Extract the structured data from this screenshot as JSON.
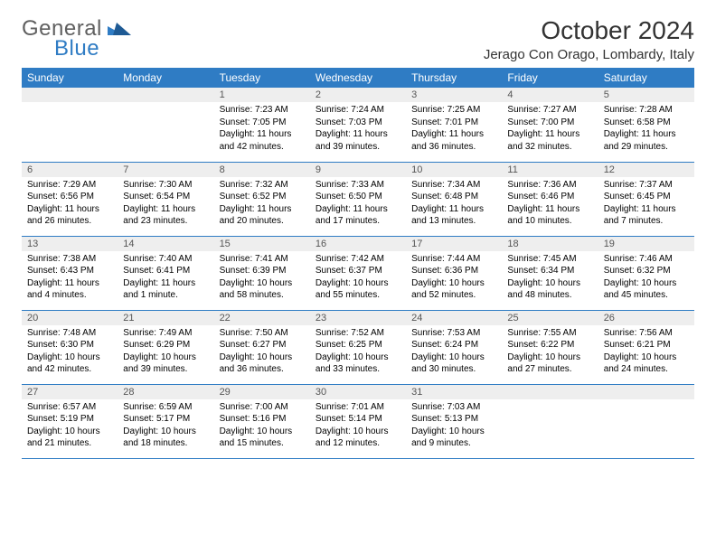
{
  "brand": {
    "part1": "General",
    "part2": "Blue",
    "color_general": "#606060",
    "color_blue": "#2f7cc4"
  },
  "title": "October 2024",
  "location": "Jerago Con Orago, Lombardy, Italy",
  "day_headers": [
    "Sunday",
    "Monday",
    "Tuesday",
    "Wednesday",
    "Thursday",
    "Friday",
    "Saturday"
  ],
  "header_bg": "#2f7cc4",
  "header_fg": "#ffffff",
  "daynum_bg": "#eeeeee",
  "border_color": "#2f7cc4",
  "background": "#ffffff",
  "font": "Arial",
  "weeks": [
    [
      null,
      null,
      {
        "n": "1",
        "sr": "Sunrise: 7:23 AM",
        "ss": "Sunset: 7:05 PM",
        "dl": "Daylight: 11 hours and 42 minutes."
      },
      {
        "n": "2",
        "sr": "Sunrise: 7:24 AM",
        "ss": "Sunset: 7:03 PM",
        "dl": "Daylight: 11 hours and 39 minutes."
      },
      {
        "n": "3",
        "sr": "Sunrise: 7:25 AM",
        "ss": "Sunset: 7:01 PM",
        "dl": "Daylight: 11 hours and 36 minutes."
      },
      {
        "n": "4",
        "sr": "Sunrise: 7:27 AM",
        "ss": "Sunset: 7:00 PM",
        "dl": "Daylight: 11 hours and 32 minutes."
      },
      {
        "n": "5",
        "sr": "Sunrise: 7:28 AM",
        "ss": "Sunset: 6:58 PM",
        "dl": "Daylight: 11 hours and 29 minutes."
      }
    ],
    [
      {
        "n": "6",
        "sr": "Sunrise: 7:29 AM",
        "ss": "Sunset: 6:56 PM",
        "dl": "Daylight: 11 hours and 26 minutes."
      },
      {
        "n": "7",
        "sr": "Sunrise: 7:30 AM",
        "ss": "Sunset: 6:54 PM",
        "dl": "Daylight: 11 hours and 23 minutes."
      },
      {
        "n": "8",
        "sr": "Sunrise: 7:32 AM",
        "ss": "Sunset: 6:52 PM",
        "dl": "Daylight: 11 hours and 20 minutes."
      },
      {
        "n": "9",
        "sr": "Sunrise: 7:33 AM",
        "ss": "Sunset: 6:50 PM",
        "dl": "Daylight: 11 hours and 17 minutes."
      },
      {
        "n": "10",
        "sr": "Sunrise: 7:34 AM",
        "ss": "Sunset: 6:48 PM",
        "dl": "Daylight: 11 hours and 13 minutes."
      },
      {
        "n": "11",
        "sr": "Sunrise: 7:36 AM",
        "ss": "Sunset: 6:46 PM",
        "dl": "Daylight: 11 hours and 10 minutes."
      },
      {
        "n": "12",
        "sr": "Sunrise: 7:37 AM",
        "ss": "Sunset: 6:45 PM",
        "dl": "Daylight: 11 hours and 7 minutes."
      }
    ],
    [
      {
        "n": "13",
        "sr": "Sunrise: 7:38 AM",
        "ss": "Sunset: 6:43 PM",
        "dl": "Daylight: 11 hours and 4 minutes."
      },
      {
        "n": "14",
        "sr": "Sunrise: 7:40 AM",
        "ss": "Sunset: 6:41 PM",
        "dl": "Daylight: 11 hours and 1 minute."
      },
      {
        "n": "15",
        "sr": "Sunrise: 7:41 AM",
        "ss": "Sunset: 6:39 PM",
        "dl": "Daylight: 10 hours and 58 minutes."
      },
      {
        "n": "16",
        "sr": "Sunrise: 7:42 AM",
        "ss": "Sunset: 6:37 PM",
        "dl": "Daylight: 10 hours and 55 minutes."
      },
      {
        "n": "17",
        "sr": "Sunrise: 7:44 AM",
        "ss": "Sunset: 6:36 PM",
        "dl": "Daylight: 10 hours and 52 minutes."
      },
      {
        "n": "18",
        "sr": "Sunrise: 7:45 AM",
        "ss": "Sunset: 6:34 PM",
        "dl": "Daylight: 10 hours and 48 minutes."
      },
      {
        "n": "19",
        "sr": "Sunrise: 7:46 AM",
        "ss": "Sunset: 6:32 PM",
        "dl": "Daylight: 10 hours and 45 minutes."
      }
    ],
    [
      {
        "n": "20",
        "sr": "Sunrise: 7:48 AM",
        "ss": "Sunset: 6:30 PM",
        "dl": "Daylight: 10 hours and 42 minutes."
      },
      {
        "n": "21",
        "sr": "Sunrise: 7:49 AM",
        "ss": "Sunset: 6:29 PM",
        "dl": "Daylight: 10 hours and 39 minutes."
      },
      {
        "n": "22",
        "sr": "Sunrise: 7:50 AM",
        "ss": "Sunset: 6:27 PM",
        "dl": "Daylight: 10 hours and 36 minutes."
      },
      {
        "n": "23",
        "sr": "Sunrise: 7:52 AM",
        "ss": "Sunset: 6:25 PM",
        "dl": "Daylight: 10 hours and 33 minutes."
      },
      {
        "n": "24",
        "sr": "Sunrise: 7:53 AM",
        "ss": "Sunset: 6:24 PM",
        "dl": "Daylight: 10 hours and 30 minutes."
      },
      {
        "n": "25",
        "sr": "Sunrise: 7:55 AM",
        "ss": "Sunset: 6:22 PM",
        "dl": "Daylight: 10 hours and 27 minutes."
      },
      {
        "n": "26",
        "sr": "Sunrise: 7:56 AM",
        "ss": "Sunset: 6:21 PM",
        "dl": "Daylight: 10 hours and 24 minutes."
      }
    ],
    [
      {
        "n": "27",
        "sr": "Sunrise: 6:57 AM",
        "ss": "Sunset: 5:19 PM",
        "dl": "Daylight: 10 hours and 21 minutes."
      },
      {
        "n": "28",
        "sr": "Sunrise: 6:59 AM",
        "ss": "Sunset: 5:17 PM",
        "dl": "Daylight: 10 hours and 18 minutes."
      },
      {
        "n": "29",
        "sr": "Sunrise: 7:00 AM",
        "ss": "Sunset: 5:16 PM",
        "dl": "Daylight: 10 hours and 15 minutes."
      },
      {
        "n": "30",
        "sr": "Sunrise: 7:01 AM",
        "ss": "Sunset: 5:14 PM",
        "dl": "Daylight: 10 hours and 12 minutes."
      },
      {
        "n": "31",
        "sr": "Sunrise: 7:03 AM",
        "ss": "Sunset: 5:13 PM",
        "dl": "Daylight: 10 hours and 9 minutes."
      },
      null,
      null
    ]
  ]
}
